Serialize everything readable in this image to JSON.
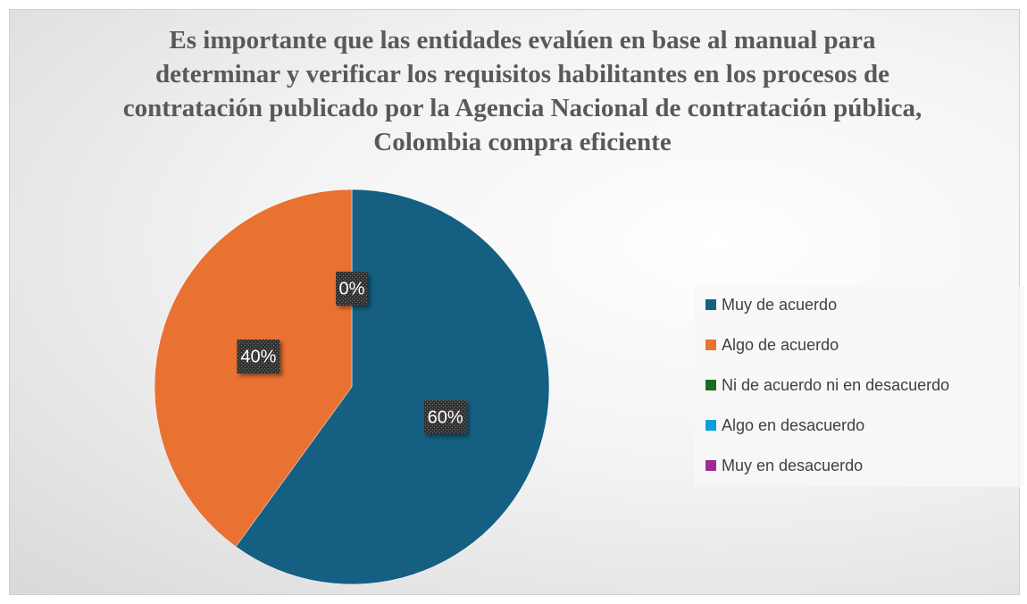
{
  "chart_data": {
    "type": "pie",
    "title": "Es importante que las entidades evalúen en base al manual para determinar y verificar los requisitos habilitantes en los procesos de contratación publicado por la Agencia Nacional de contratación pública, Colombia compra eficiente",
    "categories": [
      "Muy de acuerdo",
      "Algo de acuerdo",
      "Ni de acuerdo ni en desacuerdo",
      "Algo en desacuerdo",
      "Muy en desacuerdo"
    ],
    "values": [
      60,
      40,
      0,
      0,
      0
    ],
    "value_labels": [
      "60%",
      "40%",
      "0%",
      null,
      null
    ],
    "colors": [
      "#156082",
      "#e97132",
      "#196b24",
      "#0f9ed5",
      "#a02b93"
    ],
    "legend": "right"
  }
}
